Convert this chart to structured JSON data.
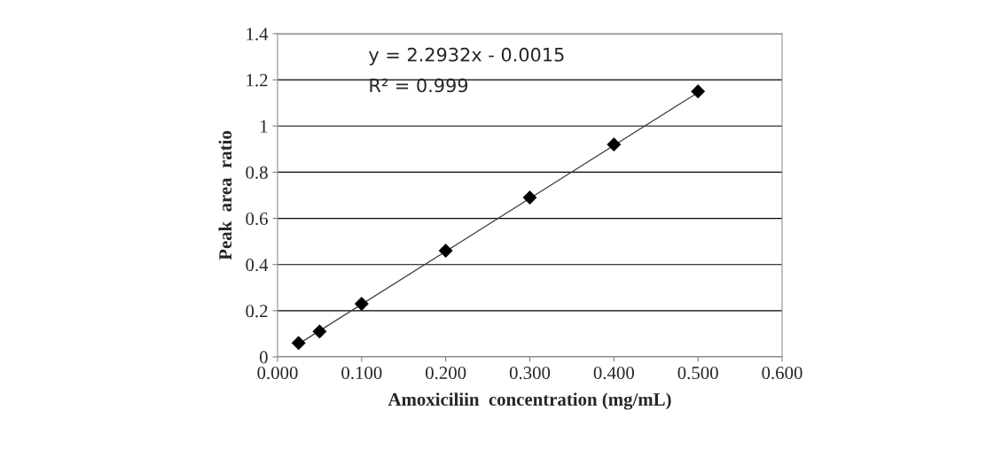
{
  "chart_data": {
    "type": "scatter",
    "xlabel": "Amoxiciliin  concentration (mg/mL)",
    "ylabel": "Peak  area  ratio",
    "annotations": [
      "y = 2.2932x - 0.0015",
      "R² = 0.999"
    ],
    "series": [
      {
        "color": "#000000",
        "marker": "diamond",
        "x": [
          0.025,
          0.05,
          0.1,
          0.2,
          0.3,
          0.4,
          0.5
        ],
        "values": [
          0.06,
          0.11,
          0.23,
          0.46,
          0.69,
          0.92,
          1.15
        ]
      },
      {
        "type": "line",
        "color": "#404040",
        "line_style": "solid",
        "x": [
          0.025,
          0.5
        ],
        "values": [
          0.056,
          1.145
        ]
      }
    ],
    "xlim": [
      0,
      0.6
    ],
    "xticks": [
      {
        "value": 0,
        "label": "0.000"
      },
      {
        "value": 0.1,
        "label": "0.100"
      },
      {
        "value": 0.2,
        "label": "0.200"
      },
      {
        "value": 0.3,
        "label": "0.300"
      },
      {
        "value": 0.4,
        "label": "0.400"
      },
      {
        "value": 0.5,
        "label": "0.500"
      },
      {
        "value": 0.6,
        "label": "0.600"
      }
    ],
    "ylim": [
      0,
      1.4
    ],
    "yticks": [
      0,
      0.2,
      0.4,
      0.6,
      0.8,
      1,
      1.2,
      1.4
    ],
    "grid": "y",
    "legend": false
  }
}
